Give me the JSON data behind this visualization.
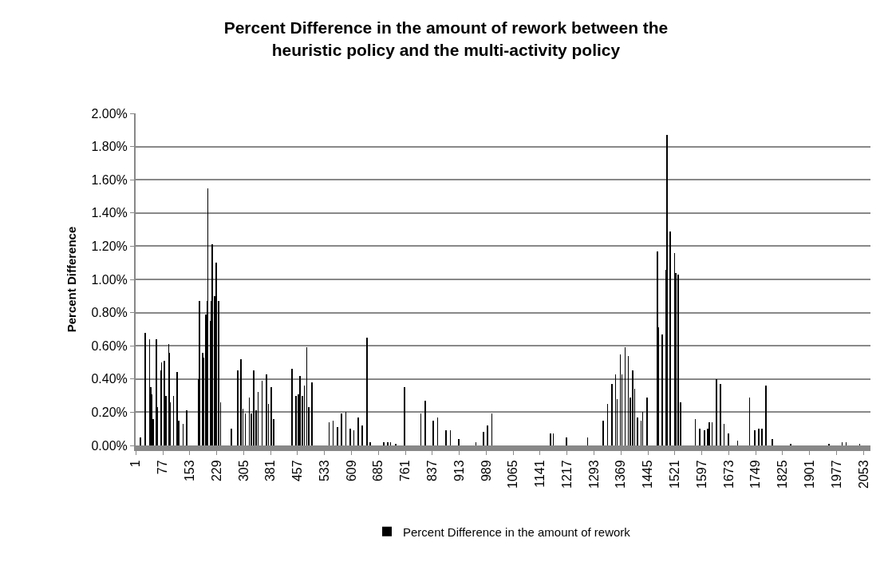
{
  "chart_data": {
    "type": "bar",
    "title": "Percent Difference in the amount of rework between the heuristic policy and the multi-activity policy",
    "ylabel": "Percent Difference",
    "series": [
      {
        "name": "Percent Difference in the amount of rework",
        "color": "#000000",
        "x": [
          14,
          28,
          40,
          43,
          47,
          50,
          59,
          62,
          71,
          74,
          82,
          86,
          94,
          96,
          98,
          107,
          118,
          122,
          134,
          145,
          177,
          181,
          189,
          192,
          199,
          202,
          204,
          211,
          213,
          216,
          223,
          228,
          235,
          240,
          271,
          288,
          298,
          303,
          310,
          321,
          327,
          334,
          340,
          346,
          357,
          369,
          375,
          383,
          389,
          441,
          452,
          459,
          464,
          470,
          476,
          483,
          488,
          498,
          546,
          557,
          569,
          581,
          593,
          605,
          616,
          628,
          640,
          653,
          662,
          700,
          711,
          719,
          734,
          758,
          805,
          817,
          840,
          852,
          876,
          888,
          912,
          960,
          981,
          993,
          1005,
          1170,
          1178,
          1215,
          1275,
          1319,
          1331,
          1343,
          1354,
          1358,
          1367,
          1372,
          1381,
          1390,
          1396,
          1402,
          1408,
          1415,
          1426,
          1430,
          1442,
          1472,
          1475,
          1486,
          1496,
          1499,
          1508,
          1520,
          1523,
          1531,
          1537,
          1579,
          1591,
          1605,
          1614,
          1618,
          1626,
          1638,
          1650,
          1660,
          1672,
          1698,
          1732,
          1746,
          1758,
          1767,
          1778,
          1796,
          1847,
          1956,
          1993,
          2004,
          2042
        ],
        "values": [
          0.05,
          0.68,
          0.64,
          0.35,
          0.31,
          0.16,
          0.64,
          0.23,
          0.45,
          0.5,
          0.51,
          0.3,
          0.61,
          0.56,
          0.26,
          0.3,
          0.44,
          0.15,
          0.13,
          0.21,
          0.4,
          0.87,
          0.56,
          0.53,
          0.79,
          0.87,
          1.55,
          0.75,
          0.87,
          1.21,
          0.9,
          1.1,
          0.87,
          0.26,
          0.1,
          0.45,
          0.52,
          0.22,
          0.19,
          0.29,
          0.19,
          0.45,
          0.21,
          0.32,
          0.39,
          0.43,
          0.25,
          0.35,
          0.16,
          0.46,
          0.3,
          0.31,
          0.42,
          0.3,
          0.36,
          0.59,
          0.23,
          0.38,
          0.14,
          0.15,
          0.11,
          0.19,
          0.2,
          0.1,
          0.09,
          0.17,
          0.12,
          0.65,
          0.02,
          0.02,
          0.02,
          0.02,
          0.01,
          0.35,
          0.19,
          0.27,
          0.15,
          0.17,
          0.09,
          0.09,
          0.04,
          0.02,
          0.08,
          0.12,
          0.19,
          0.07,
          0.07,
          0.05,
          0.05,
          0.15,
          0.25,
          0.37,
          0.43,
          0.28,
          0.55,
          0.43,
          0.59,
          0.54,
          0.29,
          0.45,
          0.34,
          0.17,
          0.15,
          0.2,
          0.29,
          1.17,
          0.71,
          0.67,
          1.06,
          1.87,
          1.29,
          1.16,
          1.04,
          1.03,
          0.26,
          0.16,
          0.1,
          0.09,
          0.1,
          0.14,
          0.14,
          0.4,
          0.37,
          0.13,
          0.07,
          0.03,
          0.29,
          0.09,
          0.1,
          0.1,
          0.36,
          0.04,
          0.01,
          0.01,
          0.02,
          0.02,
          0.01
        ]
      }
    ],
    "xlim": [
      0.5,
      2072.5
    ],
    "xticks": [
      1,
      77,
      153,
      229,
      305,
      381,
      457,
      533,
      609,
      685,
      761,
      837,
      913,
      989,
      1065,
      1141,
      1217,
      1293,
      1369,
      1445,
      1521,
      1597,
      1673,
      1749,
      1825,
      1901,
      1977,
      2053
    ],
    "ylim": [
      0,
      2
    ],
    "yticks": [
      {
        "value": 0,
        "label": "0.00%"
      },
      {
        "value": 0.2,
        "label": "0.20%"
      },
      {
        "value": 0.4,
        "label": "0.40%"
      },
      {
        "value": 0.6,
        "label": "0.60%"
      },
      {
        "value": 0.8,
        "label": "0.80%"
      },
      {
        "value": 1.0,
        "label": "1.00%"
      },
      {
        "value": 1.2,
        "label": "1.20%"
      },
      {
        "value": 1.4,
        "label": "1.40%"
      },
      {
        "value": 1.6,
        "label": "1.60%"
      },
      {
        "value": 1.8,
        "label": "1.80%"
      },
      {
        "value": 2.0,
        "label": "2.00%"
      }
    ],
    "grid": "y",
    "legend": "bottom"
  }
}
